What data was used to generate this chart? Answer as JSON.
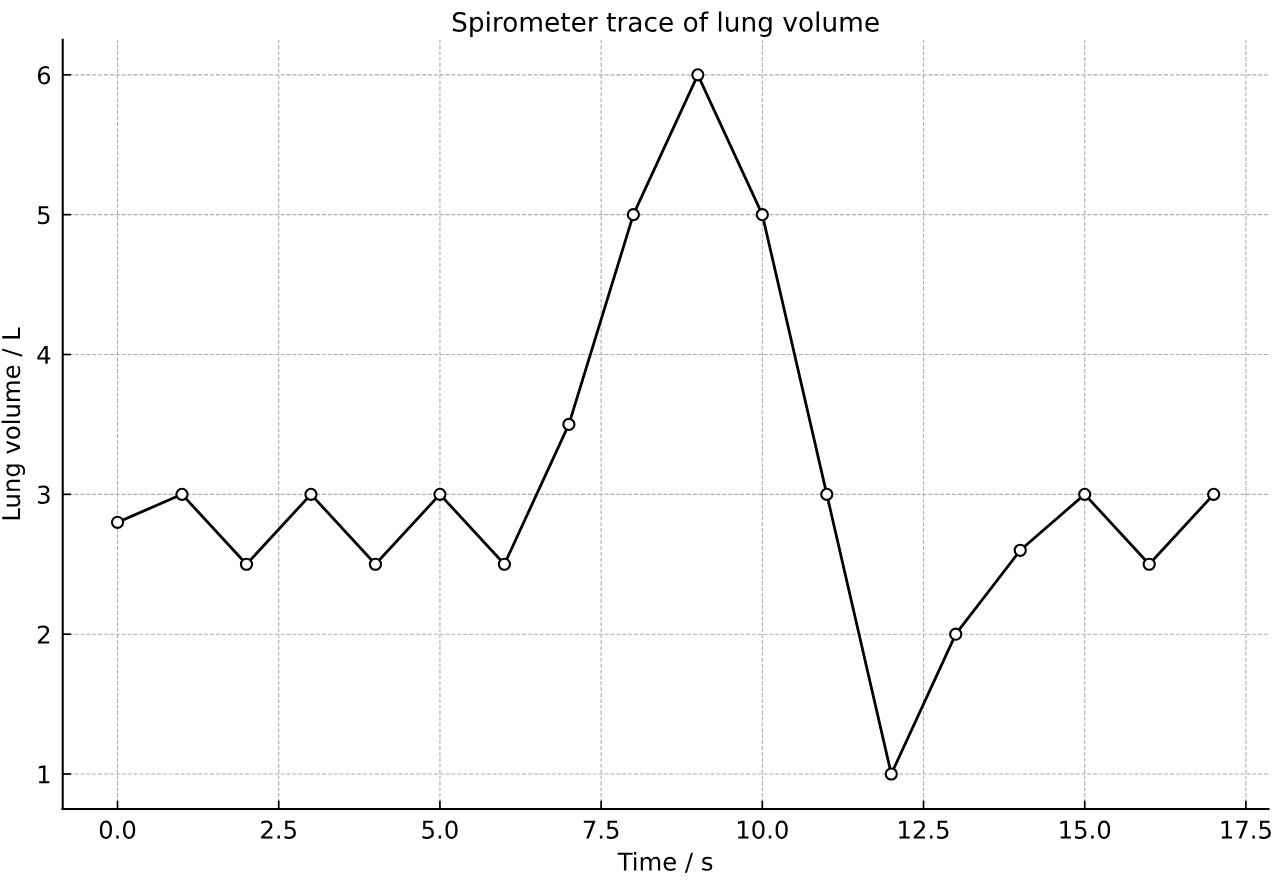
{
  "chart_data": {
    "type": "line",
    "title": "Spirometer trace of lung volume",
    "xlabel": "Time / s",
    "ylabel": "Lung volume / L",
    "x": [
      0,
      1,
      2,
      3,
      4,
      5,
      6,
      7,
      8,
      9,
      10,
      11,
      12,
      13,
      14,
      15,
      16,
      17
    ],
    "series": [
      {
        "color": "#000000",
        "values": [
          2.8,
          3,
          2.5,
          3,
          2.5,
          3,
          2.5,
          3.5,
          5,
          6,
          5,
          3,
          1,
          2,
          2.6,
          3,
          2.5,
          3
        ]
      }
    ],
    "xlim": [
      -0.85,
      17.85
    ],
    "ylim": [
      0.75,
      6.25
    ],
    "xticks": [
      {
        "value": 0,
        "label": "0.0"
      },
      {
        "value": 2.5,
        "label": "2.5"
      },
      {
        "value": 5,
        "label": "5.0"
      },
      {
        "value": 7.5,
        "label": "7.5"
      },
      {
        "value": 10,
        "label": "10.0"
      },
      {
        "value": 12.5,
        "label": "12.5"
      },
      {
        "value": 15,
        "label": "15.0"
      },
      {
        "value": 17.5,
        "label": "17.5"
      }
    ],
    "yticks": [
      1,
      2,
      3,
      4,
      5,
      6
    ],
    "grid": true,
    "marker": "circle",
    "line_style": "solid"
  }
}
